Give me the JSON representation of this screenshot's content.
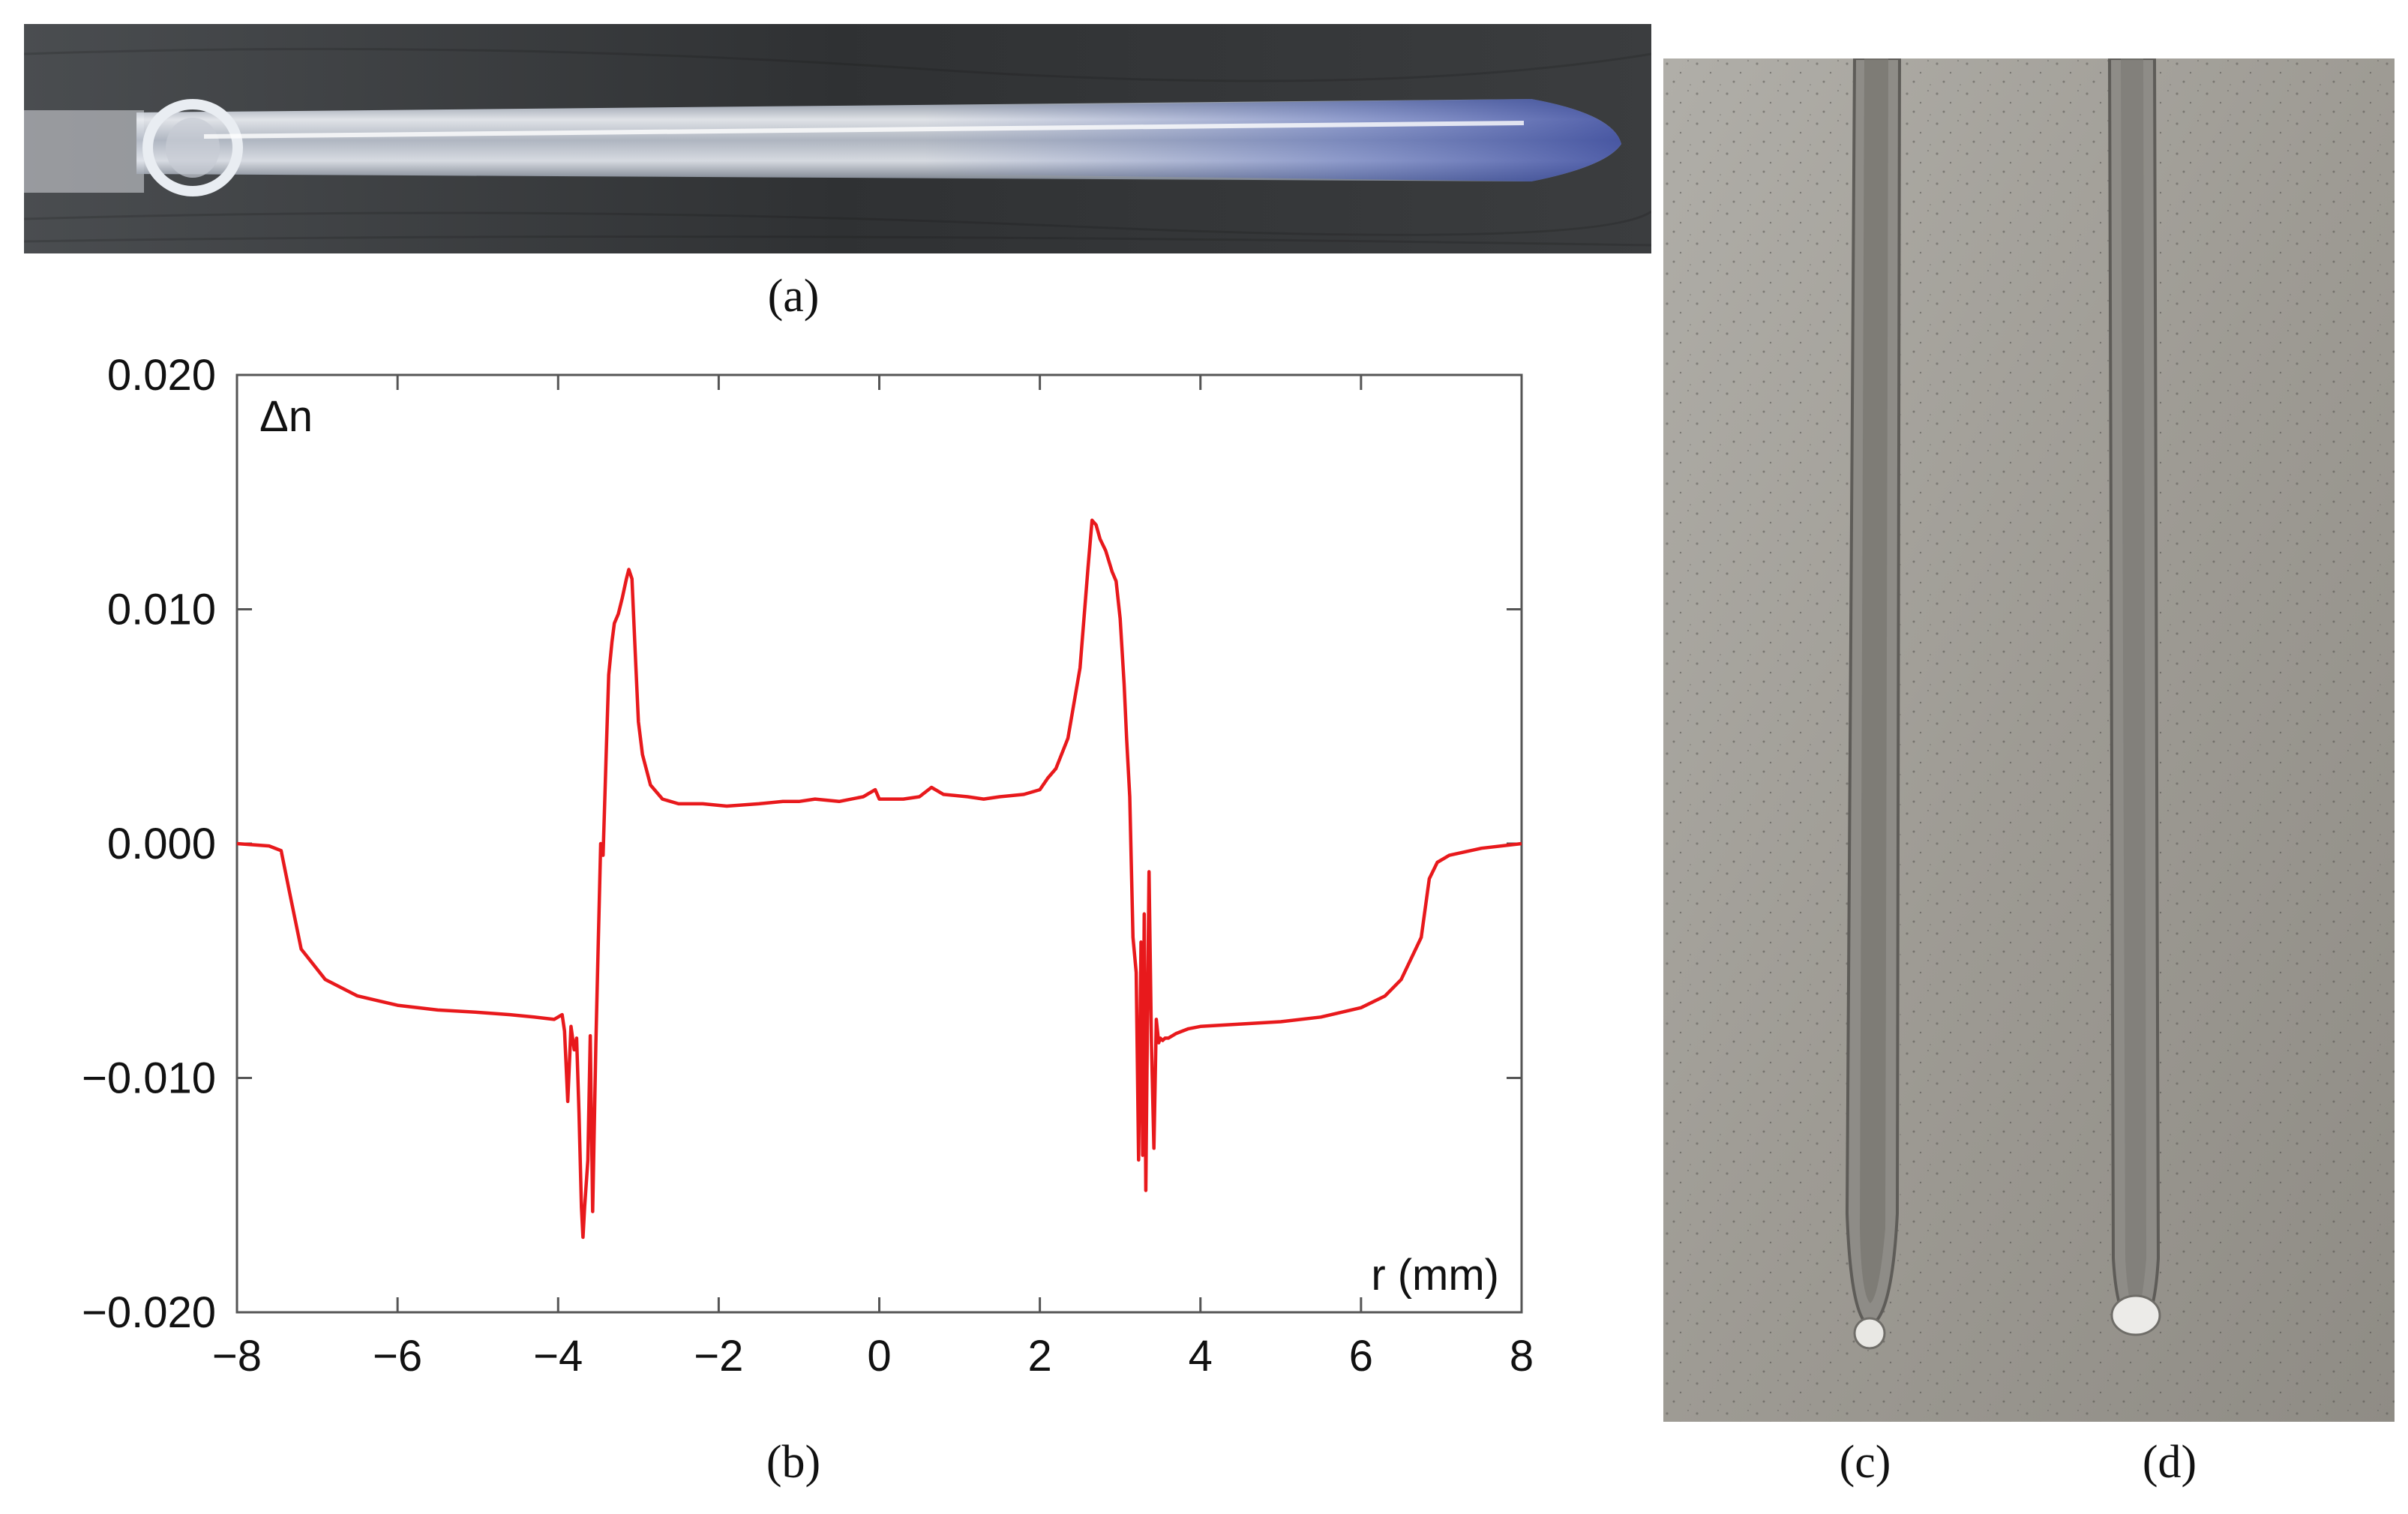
{
  "captions": {
    "a": "(a)",
    "b": "(b)",
    "c": "(c)",
    "d": "(d)"
  },
  "photo_a": {
    "description_icon": "glass-preform-rod-photo",
    "background": "#3a3c3e"
  },
  "photo_cd": {
    "description_icon": "two-glass-fiber-tips-photo",
    "background": "#9d9a93"
  },
  "chart_data": {
    "type": "line",
    "title": "",
    "ylabel": "Δn",
    "xlabel": "r (mm)",
    "xlim": [
      -8,
      8
    ],
    "ylim": [
      -0.02,
      0.02
    ],
    "xticks": [
      -8,
      -6,
      -4,
      -2,
      0,
      2,
      4,
      6,
      8
    ],
    "xtick_labels": [
      "−8",
      "−6",
      "−4",
      "−2",
      "0",
      "2",
      "4",
      "6",
      "8"
    ],
    "yticks": [
      0.02,
      0.01,
      0.0,
      -0.01,
      -0.02
    ],
    "ytick_labels": [
      "0.020",
      "0.010",
      "0.000",
      "−0.010",
      "−0.020"
    ],
    "grid": false,
    "line_color": "#e8191c",
    "series": [
      {
        "x": [
          -8.0,
          -7.6,
          -7.45,
          -7.35,
          -7.2,
          -6.9,
          -6.5,
          -6.0,
          -5.5,
          -5.0,
          -4.6,
          -4.3,
          -4.05,
          -3.95,
          -3.92,
          -3.88,
          -3.84,
          -3.8,
          -3.77,
          -3.74,
          -3.71,
          -3.69,
          -3.67,
          -3.63,
          -3.6,
          -3.57,
          -3.53,
          -3.5,
          -3.47,
          -3.44,
          -3.4,
          -3.37,
          -3.33,
          -3.3,
          -3.25,
          -3.2,
          -3.15,
          -3.12,
          -3.08,
          -3.04,
          -3.0,
          -2.95,
          -2.85,
          -2.7,
          -2.5,
          -2.2,
          -1.9,
          -1.5,
          -1.2,
          -1.0,
          -0.8,
          -0.5,
          -0.2,
          -0.05,
          0.0,
          0.3,
          0.5,
          0.65,
          0.8,
          1.1,
          1.3,
          1.5,
          1.8,
          2.0,
          2.1,
          2.2,
          2.35,
          2.5,
          2.6,
          2.65,
          2.7,
          2.75,
          2.82,
          2.9,
          2.95,
          3.0,
          3.05,
          3.08,
          3.12,
          3.16,
          3.2,
          3.23,
          3.26,
          3.28,
          3.3,
          3.32,
          3.34,
          3.36,
          3.39,
          3.42,
          3.45,
          3.48,
          3.5,
          3.53,
          3.56,
          3.6,
          3.7,
          3.85,
          4.0,
          4.5,
          5.0,
          5.5,
          6.0,
          6.3,
          6.5,
          6.75,
          6.85,
          6.95,
          7.1,
          7.5,
          8.0
        ],
        "y": [
          0.0,
          -0.0001,
          -0.0003,
          -0.002,
          -0.0045,
          -0.0058,
          -0.0065,
          -0.0069,
          -0.0071,
          -0.0072,
          -0.0073,
          -0.0074,
          -0.0075,
          -0.0073,
          -0.008,
          -0.011,
          -0.0078,
          -0.0088,
          -0.0083,
          -0.0115,
          -0.0155,
          -0.0168,
          -0.0155,
          -0.0135,
          -0.0082,
          -0.0157,
          -0.0085,
          -0.0042,
          0.0,
          -0.0005,
          0.004,
          0.0072,
          0.0086,
          0.0094,
          0.0098,
          0.0105,
          0.0113,
          0.0117,
          0.0113,
          0.0082,
          0.0052,
          0.0038,
          0.0025,
          0.0019,
          0.0017,
          0.0017,
          0.0016,
          0.0017,
          0.0018,
          0.0018,
          0.0019,
          0.0018,
          0.002,
          0.0023,
          0.0019,
          0.0019,
          0.002,
          0.0024,
          0.0021,
          0.002,
          0.0019,
          0.002,
          0.0021,
          0.0023,
          0.0028,
          0.0032,
          0.0045,
          0.0075,
          0.0118,
          0.0138,
          0.0136,
          0.013,
          0.0125,
          0.0116,
          0.0112,
          0.0096,
          0.0068,
          0.0045,
          0.002,
          -0.004,
          -0.0055,
          -0.0135,
          -0.0042,
          -0.0133,
          -0.003,
          -0.0148,
          -0.0075,
          -0.0012,
          -0.0085,
          -0.013,
          -0.0075,
          -0.0085,
          -0.0083,
          -0.0084,
          -0.0083,
          -0.0083,
          -0.0081,
          -0.0079,
          -0.0078,
          -0.0077,
          -0.0076,
          -0.0074,
          -0.007,
          -0.0065,
          -0.0058,
          -0.004,
          -0.0015,
          -0.0008,
          -0.0005,
          -0.0002,
          0.0
        ]
      }
    ]
  }
}
